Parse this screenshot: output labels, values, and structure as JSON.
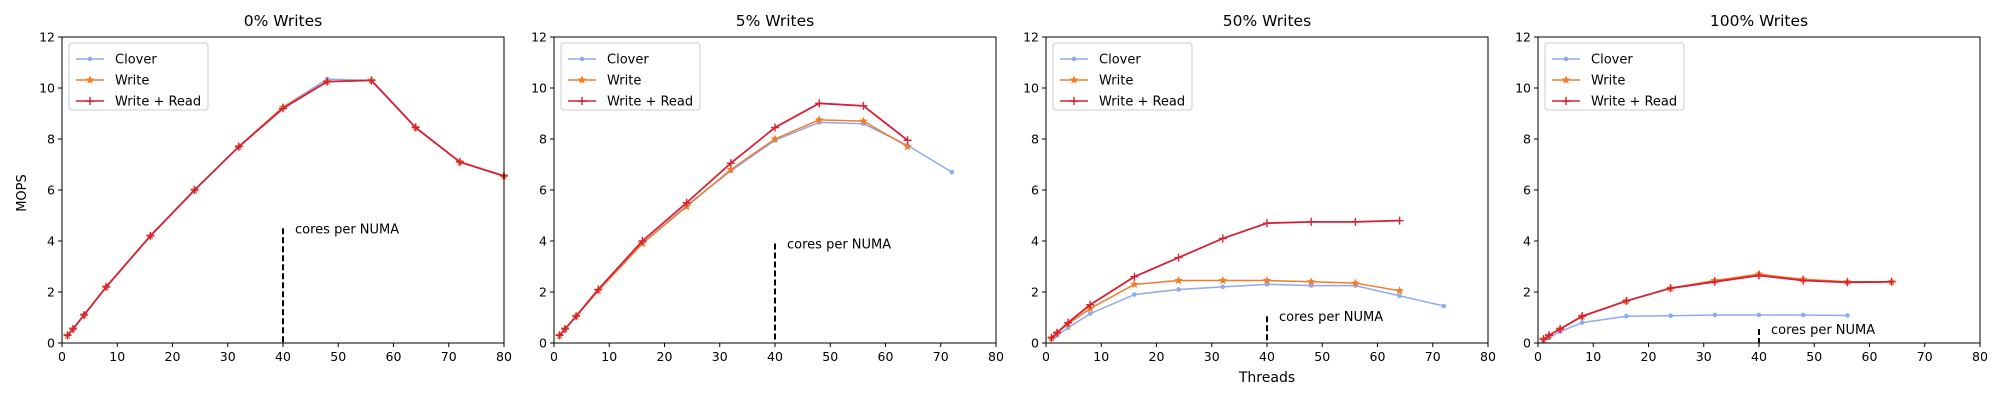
{
  "figure": {
    "ylabel": "MOPS",
    "xlabel": "Threads"
  },
  "colors": {
    "Clover": "#8eaaf0",
    "Write": "#f07d2a",
    "Write + Read": "#d62035"
  },
  "chart_data": [
    {
      "type": "line",
      "title": "0% Writes",
      "xlim": [
        0,
        80
      ],
      "ylim": [
        0,
        12
      ],
      "xticks": [
        0,
        10,
        20,
        30,
        40,
        50,
        60,
        70,
        80
      ],
      "yticks": [
        0,
        2,
        4,
        6,
        8,
        10,
        12
      ],
      "legend": "top-left",
      "annotation": {
        "text": "cores per NUMA",
        "x": 40,
        "y_top": 4.5
      },
      "series": [
        {
          "name": "Clover",
          "marker": "dot",
          "x": [
            1,
            2,
            4,
            8,
            16,
            24,
            32,
            40,
            48,
            56,
            64,
            72,
            80
          ],
          "y": [
            0.3,
            0.55,
            1.1,
            2.2,
            4.2,
            6.0,
            7.7,
            9.25,
            10.35,
            10.3,
            8.45,
            7.1,
            6.55
          ]
        },
        {
          "name": "Write",
          "marker": "star",
          "x": [
            1,
            2,
            4,
            8,
            16,
            24,
            32,
            40,
            48,
            56,
            64,
            72,
            80
          ],
          "y": [
            0.3,
            0.55,
            1.1,
            2.2,
            4.2,
            6.0,
            7.7,
            9.25,
            10.25,
            10.3,
            8.45,
            7.1,
            6.55
          ]
        },
        {
          "name": "Write + Read",
          "marker": "plus",
          "x": [
            1,
            2,
            4,
            8,
            16,
            24,
            32,
            40,
            48,
            56,
            64,
            72,
            80
          ],
          "y": [
            0.3,
            0.55,
            1.1,
            2.2,
            4.2,
            6.0,
            7.7,
            9.2,
            10.25,
            10.3,
            8.45,
            7.1,
            6.55
          ]
        }
      ]
    },
    {
      "type": "line",
      "title": "5% Writes",
      "xlim": [
        0,
        80
      ],
      "ylim": [
        0,
        12
      ],
      "xticks": [
        0,
        10,
        20,
        30,
        40,
        50,
        60,
        70,
        80
      ],
      "yticks": [
        0,
        2,
        4,
        6,
        8,
        10,
        12
      ],
      "legend": "top-left",
      "annotation": {
        "text": "cores per NUMA",
        "x": 40,
        "y_top": 3.9
      },
      "series": [
        {
          "name": "Clover",
          "marker": "dot",
          "x": [
            1,
            2,
            4,
            8,
            16,
            24,
            32,
            40,
            48,
            56,
            64,
            72
          ],
          "y": [
            0.3,
            0.55,
            1.05,
            2.05,
            3.9,
            5.4,
            6.75,
            7.95,
            8.65,
            8.6,
            7.75,
            6.7
          ]
        },
        {
          "name": "Write",
          "marker": "star",
          "x": [
            1,
            2,
            4,
            8,
            16,
            24,
            32,
            40,
            48,
            56,
            64
          ],
          "y": [
            0.3,
            0.55,
            1.05,
            2.05,
            3.9,
            5.35,
            6.8,
            8.0,
            8.75,
            8.7,
            7.7
          ]
        },
        {
          "name": "Write + Read",
          "marker": "plus",
          "x": [
            1,
            2,
            4,
            8,
            16,
            24,
            32,
            40,
            48,
            56,
            64
          ],
          "y": [
            0.3,
            0.55,
            1.05,
            2.1,
            4.0,
            5.5,
            7.05,
            8.45,
            9.4,
            9.3,
            7.95
          ]
        }
      ]
    },
    {
      "type": "line",
      "title": "50% Writes",
      "xlim": [
        0,
        80
      ],
      "ylim": [
        0,
        12
      ],
      "xticks": [
        0,
        10,
        20,
        30,
        40,
        50,
        60,
        70,
        80
      ],
      "yticks": [
        0,
        2,
        4,
        6,
        8,
        10,
        12
      ],
      "legend": "top-left",
      "annotation": {
        "text": "cores per NUMA",
        "x": 40,
        "y_top": 1.05
      },
      "series": [
        {
          "name": "Clover",
          "marker": "dot",
          "x": [
            1,
            2,
            4,
            8,
            16,
            24,
            32,
            40,
            48,
            56,
            64,
            72
          ],
          "y": [
            0.15,
            0.3,
            0.6,
            1.15,
            1.9,
            2.1,
            2.2,
            2.3,
            2.25,
            2.25,
            1.85,
            1.45
          ]
        },
        {
          "name": "Write",
          "marker": "star",
          "x": [
            1,
            2,
            4,
            8,
            16,
            24,
            32,
            40,
            48,
            56,
            64
          ],
          "y": [
            0.2,
            0.4,
            0.75,
            1.35,
            2.3,
            2.45,
            2.45,
            2.45,
            2.4,
            2.35,
            2.05
          ]
        },
        {
          "name": "Write + Read",
          "marker": "plus",
          "x": [
            1,
            2,
            4,
            8,
            16,
            24,
            32,
            40,
            48,
            56,
            64
          ],
          "y": [
            0.2,
            0.4,
            0.8,
            1.5,
            2.6,
            3.35,
            4.1,
            4.7,
            4.75,
            4.75,
            4.8
          ]
        }
      ]
    },
    {
      "type": "line",
      "title": "100% Writes",
      "xlim": [
        0,
        80
      ],
      "ylim": [
        0,
        12
      ],
      "xticks": [
        0,
        10,
        20,
        30,
        40,
        50,
        60,
        70,
        80
      ],
      "yticks": [
        0,
        2,
        4,
        6,
        8,
        10,
        12
      ],
      "legend": "top-left",
      "annotation": {
        "text": "cores per NUMA",
        "x": 40,
        "y_top": 0.55
      },
      "series": [
        {
          "name": "Clover",
          "marker": "dot",
          "x": [
            1,
            2,
            4,
            8,
            16,
            24,
            32,
            40,
            48,
            56
          ],
          "y": [
            0.1,
            0.2,
            0.45,
            0.8,
            1.05,
            1.07,
            1.1,
            1.1,
            1.1,
            1.08
          ]
        },
        {
          "name": "Write",
          "marker": "star",
          "x": [
            1,
            2,
            4,
            8,
            16,
            24,
            32,
            40,
            48,
            56,
            64
          ],
          "y": [
            0.15,
            0.3,
            0.55,
            1.05,
            1.65,
            2.15,
            2.45,
            2.7,
            2.5,
            2.4,
            2.4
          ]
        },
        {
          "name": "Write + Read",
          "marker": "plus",
          "x": [
            1,
            2,
            4,
            8,
            16,
            24,
            32,
            40,
            48,
            56,
            64
          ],
          "y": [
            0.15,
            0.3,
            0.55,
            1.05,
            1.65,
            2.15,
            2.4,
            2.65,
            2.45,
            2.38,
            2.4
          ]
        }
      ]
    }
  ]
}
